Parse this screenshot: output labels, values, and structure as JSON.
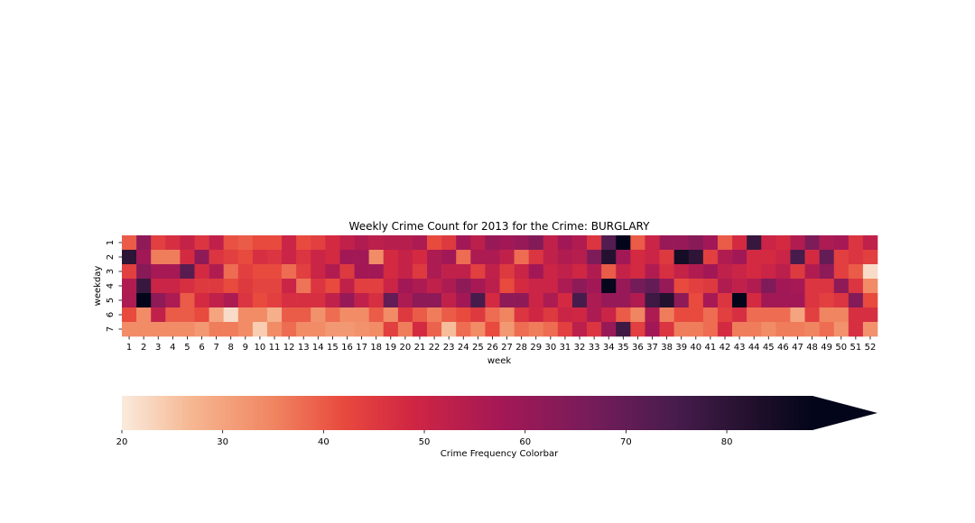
{
  "chart_data": {
    "type": "heatmap",
    "title": "Weekly Crime Count for 2013 for the Crime: BURGLARY",
    "xlabel": "week",
    "ylabel": "weekday",
    "x_categories": [
      "1",
      "2",
      "3",
      "4",
      "5",
      "6",
      "7",
      "8",
      "9",
      "10",
      "11",
      "12",
      "13",
      "14",
      "15",
      "16",
      "17",
      "18",
      "19",
      "20",
      "21",
      "22",
      "23",
      "24",
      "25",
      "26",
      "27",
      "28",
      "29",
      "30",
      "31",
      "32",
      "33",
      "34",
      "35",
      "36",
      "37",
      "38",
      "39",
      "40",
      "41",
      "42",
      "43",
      "44",
      "45",
      "46",
      "47",
      "48",
      "49",
      "50",
      "51",
      "52"
    ],
    "y_categories": [
      "1",
      "2",
      "3",
      "4",
      "5",
      "6",
      "7"
    ],
    "values": [
      [
        40,
        62,
        44,
        47,
        51,
        46,
        52,
        41,
        40,
        42,
        42,
        50,
        42,
        44,
        48,
        52,
        55,
        53,
        54,
        54,
        56,
        42,
        45,
        58,
        53,
        60,
        58,
        60,
        64,
        52,
        58,
        55,
        46,
        73,
        90,
        40,
        50,
        60,
        60,
        63,
        58,
        40,
        48,
        78,
        50,
        48,
        55,
        65,
        56,
        57,
        46,
        52
      ],
      [
        80,
        58,
        36,
        36,
        48,
        62,
        46,
        44,
        42,
        47,
        46,
        50,
        46,
        50,
        48,
        58,
        58,
        34,
        48,
        51,
        48,
        56,
        58,
        38,
        56,
        56,
        52,
        38,
        46,
        52,
        55,
        54,
        65,
        82,
        58,
        48,
        50,
        45,
        85,
        80,
        44,
        55,
        58,
        48,
        48,
        50,
        75,
        48,
        70,
        44,
        46,
        44
      ],
      [
        44,
        63,
        57,
        57,
        72,
        48,
        55,
        38,
        44,
        42,
        42,
        38,
        44,
        50,
        55,
        45,
        58,
        58,
        48,
        51,
        45,
        56,
        52,
        52,
        44,
        52,
        45,
        50,
        58,
        50,
        52,
        49,
        55,
        40,
        51,
        48,
        55,
        47,
        51,
        55,
        58,
        52,
        50,
        48,
        50,
        53,
        45,
        55,
        62,
        44,
        40,
        22
      ],
      [
        55,
        78,
        50,
        50,
        47,
        45,
        45,
        42,
        45,
        43,
        43,
        50,
        37,
        46,
        42,
        52,
        44,
        44,
        50,
        58,
        56,
        52,
        56,
        62,
        57,
        53,
        42,
        48,
        50,
        50,
        56,
        62,
        58,
        88,
        60,
        67,
        70,
        60,
        42,
        44,
        45,
        55,
        52,
        55,
        65,
        58,
        57,
        46,
        46,
        62,
        46,
        34
      ],
      [
        56,
        90,
        62,
        56,
        40,
        48,
        52,
        56,
        46,
        42,
        44,
        47,
        47,
        47,
        52,
        60,
        52,
        47,
        70,
        56,
        62,
        62,
        52,
        58,
        75,
        48,
        62,
        62,
        50,
        56,
        48,
        75,
        56,
        60,
        60,
        55,
        77,
        82,
        62,
        42,
        57,
        46,
        90,
        48,
        58,
        58,
        58,
        46,
        44,
        46,
        64,
        42
      ],
      [
        42,
        34,
        52,
        40,
        40,
        42,
        30,
        22,
        34,
        34,
        28,
        40,
        40,
        33,
        38,
        34,
        34,
        40,
        34,
        45,
        40,
        36,
        40,
        42,
        45,
        38,
        35,
        46,
        49,
        45,
        50,
        49,
        56,
        50,
        40,
        35,
        56,
        36,
        42,
        42,
        38,
        44,
        47,
        38,
        38,
        38,
        30,
        44,
        35,
        35,
        47,
        47
      ],
      [
        34,
        34,
        34,
        34,
        34,
        32,
        36,
        36,
        34,
        24,
        34,
        38,
        34,
        34,
        32,
        32,
        33,
        34,
        44,
        36,
        48,
        39,
        26,
        38,
        34,
        42,
        32,
        38,
        36,
        38,
        44,
        53,
        46,
        60,
        77,
        44,
        58,
        46,
        36,
        36,
        38,
        48,
        36,
        36,
        34,
        36,
        36,
        35,
        38,
        33,
        47,
        33
      ]
    ],
    "colorbar": {
      "label": "Crime Frequency Colorbar",
      "range": [
        20,
        88.5
      ],
      "ticks": [
        "20",
        "30",
        "40",
        "50",
        "60",
        "70",
        "80"
      ],
      "extend": "max"
    }
  }
}
